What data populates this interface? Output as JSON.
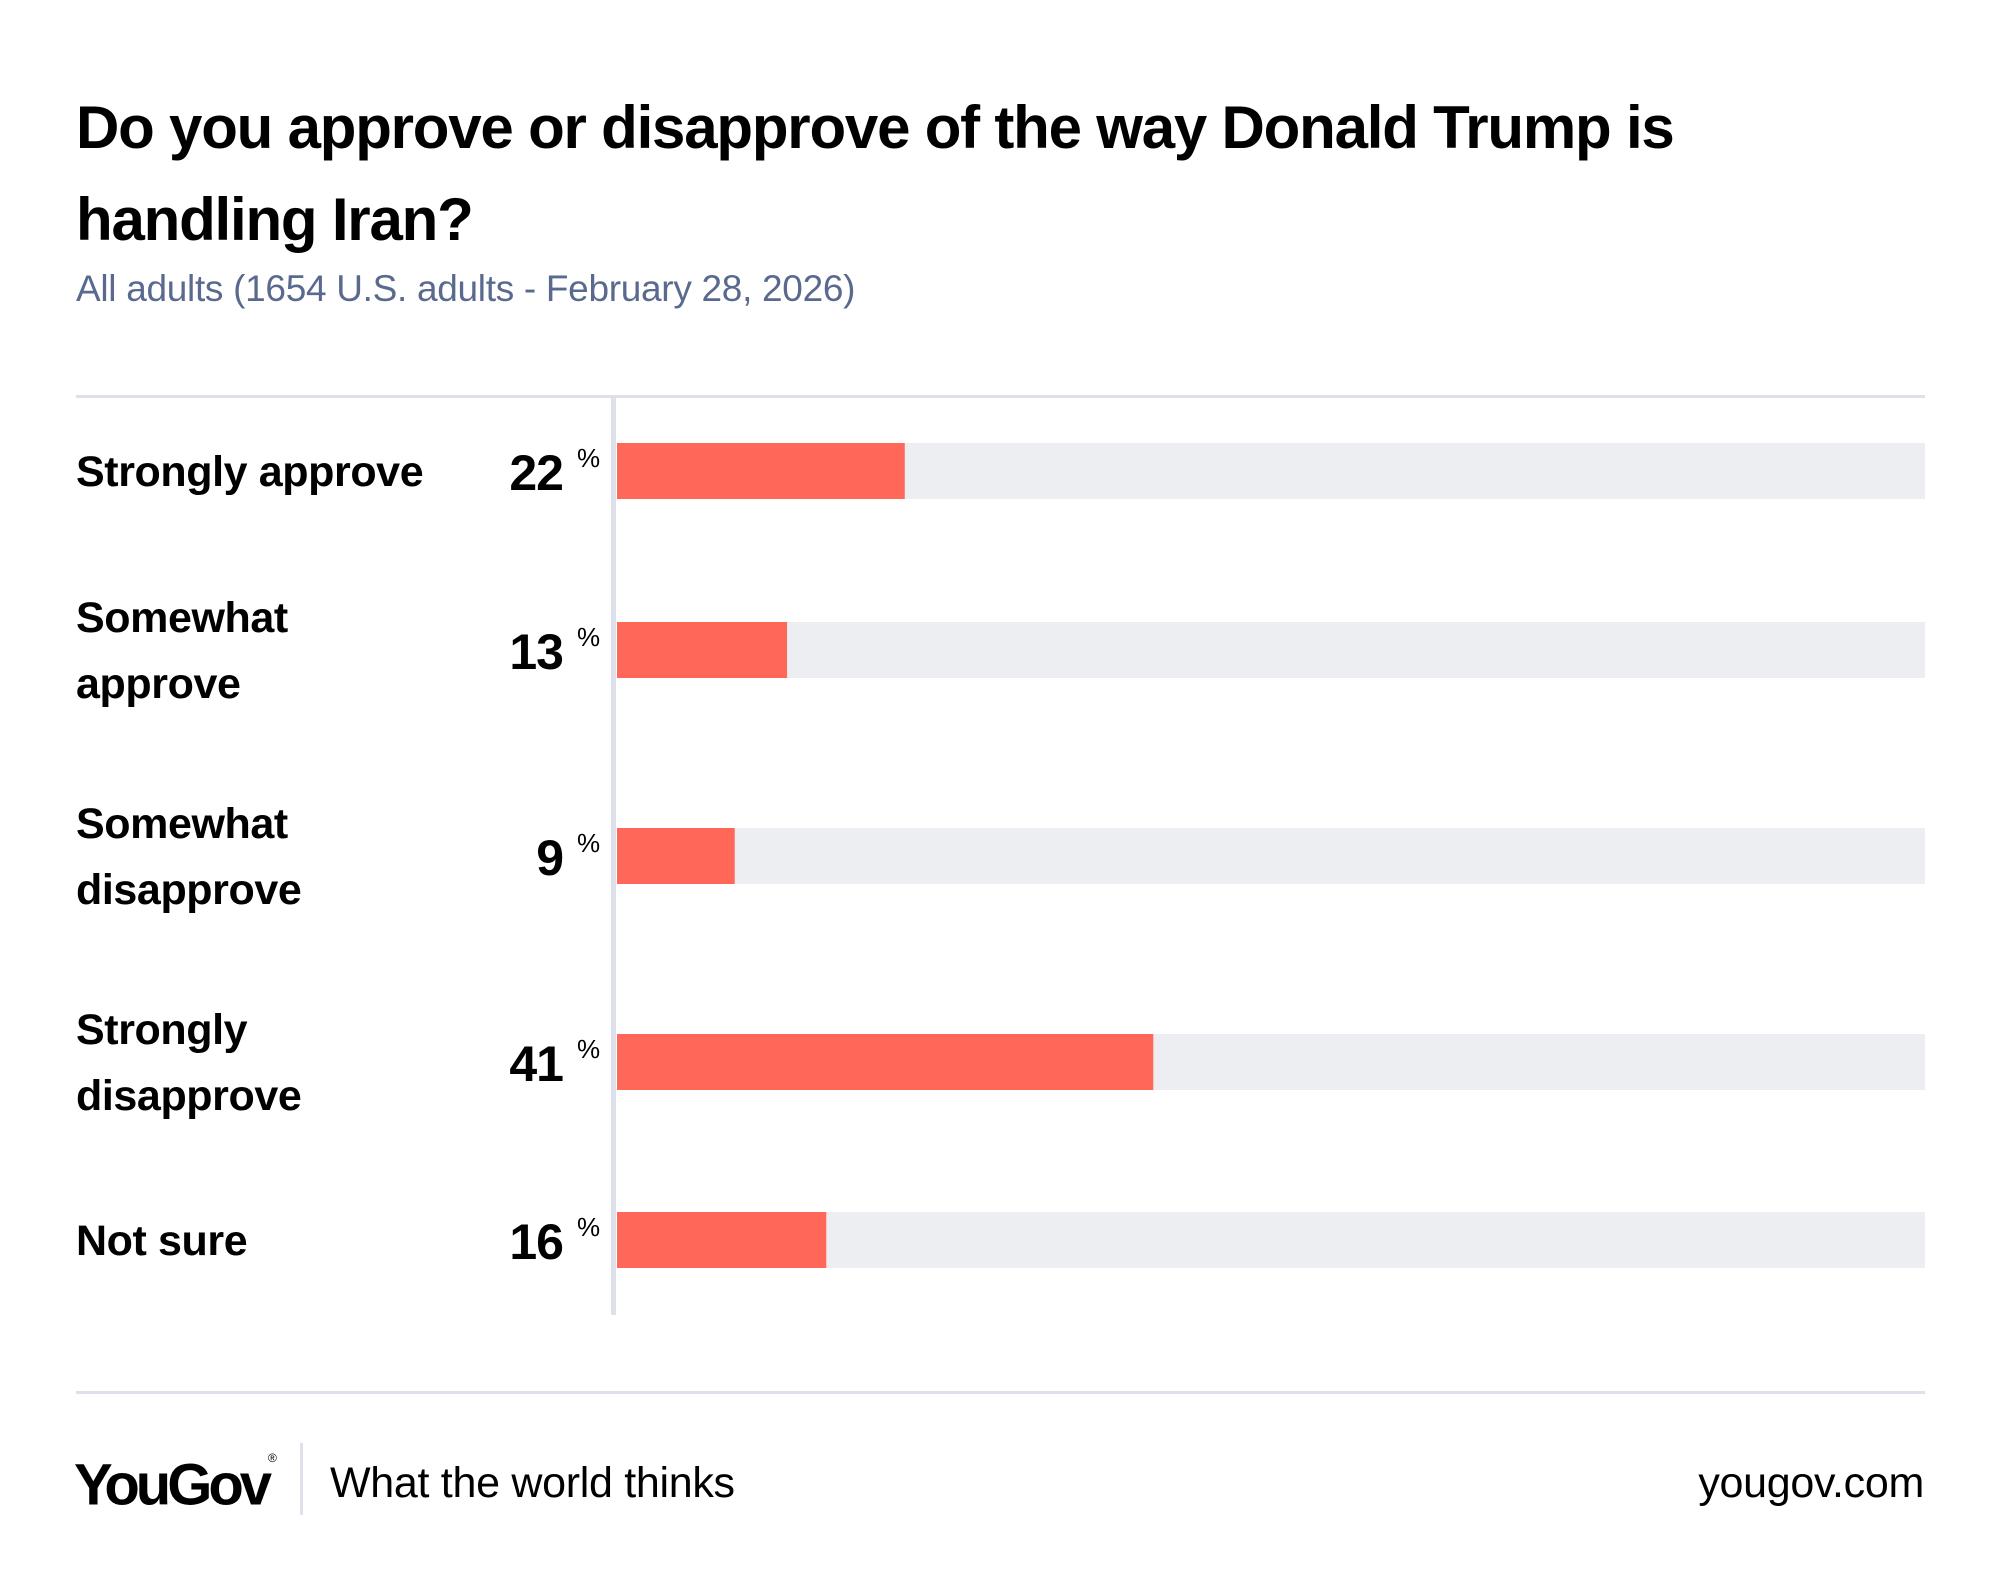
{
  "header": {
    "title": "Do you approve or disapprove of the way Donald Trump is handling Iran?",
    "subtitle": "All adults (1654 U.S. adults - February 28, 2026)"
  },
  "colors": {
    "bar": "#ff6859",
    "track": "#edeef2",
    "axis": "#dfe1ea",
    "subtitle": "#5a6a8f"
  },
  "chart_data": {
    "type": "bar",
    "orientation": "horizontal",
    "title": "Do you approve or disapprove of the way Donald Trump is handling Iran?",
    "subtitle": "All adults (1654 U.S. adults - February 28, 2026)",
    "xlabel": "",
    "ylabel": "",
    "xlim": [
      0,
      100
    ],
    "unit": "%",
    "grid": false,
    "legend": "none",
    "categories": [
      [
        "Strongly approve"
      ],
      [
        "Somewhat",
        "approve"
      ],
      [
        "Somewhat",
        "disapprove"
      ],
      [
        "Strongly",
        "disapprove"
      ],
      [
        "Not sure"
      ]
    ],
    "category_names": [
      "Strongly approve",
      "Somewhat approve",
      "Somewhat disapprove",
      "Strongly disapprove",
      "Not sure"
    ],
    "values": [
      22,
      13,
      9,
      41,
      16
    ]
  },
  "footer": {
    "logo": "YouGov",
    "logo_mark": "®",
    "tagline": "What the world thinks",
    "url": "yougov.com"
  }
}
